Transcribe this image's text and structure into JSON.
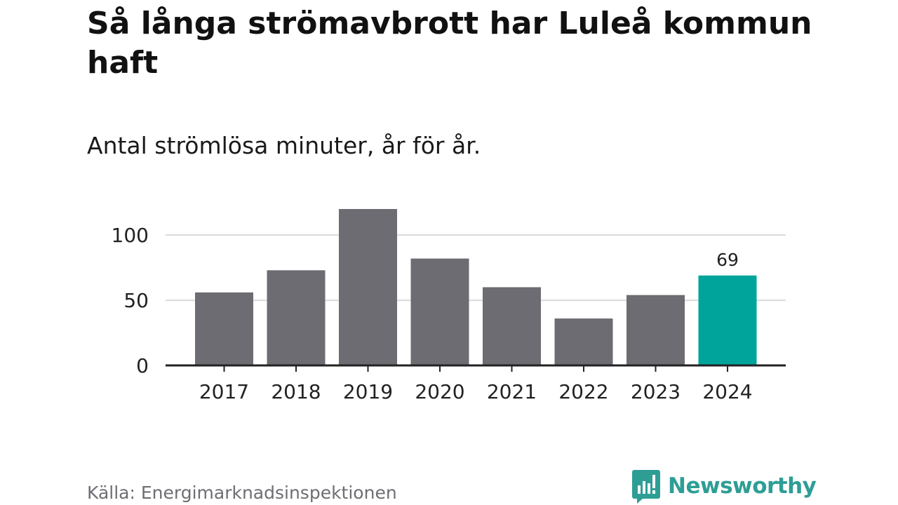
{
  "header": {
    "title": "Så långa strömavbrott har Luleå kommun haft",
    "subtitle": "Antal strömlösa minuter, år för år."
  },
  "footer": {
    "source": "Källa: Energimarknadsinspektionen",
    "brand": "Newsworthy"
  },
  "colors": {
    "bar": "#6d6c72",
    "highlight": "#00a49a",
    "grid": "#d9d9d9",
    "axis": "#222222",
    "text": "#222222",
    "brand": "#2e9e95"
  },
  "chart_data": {
    "type": "bar",
    "title": "Så långa strömavbrott har Luleå kommun haft",
    "subtitle": "Antal strömlösa minuter, år för år.",
    "xlabel": "",
    "ylabel": "",
    "categories": [
      "2017",
      "2018",
      "2019",
      "2020",
      "2021",
      "2022",
      "2023",
      "2024"
    ],
    "values": [
      56,
      73,
      120,
      82,
      60,
      36,
      54,
      69
    ],
    "highlight_index": 7,
    "data_labels": [
      {
        "index": 7,
        "text": "69"
      }
    ],
    "yticks": [
      0,
      50,
      100
    ],
    "ylim": [
      0,
      120
    ],
    "grid": true
  }
}
